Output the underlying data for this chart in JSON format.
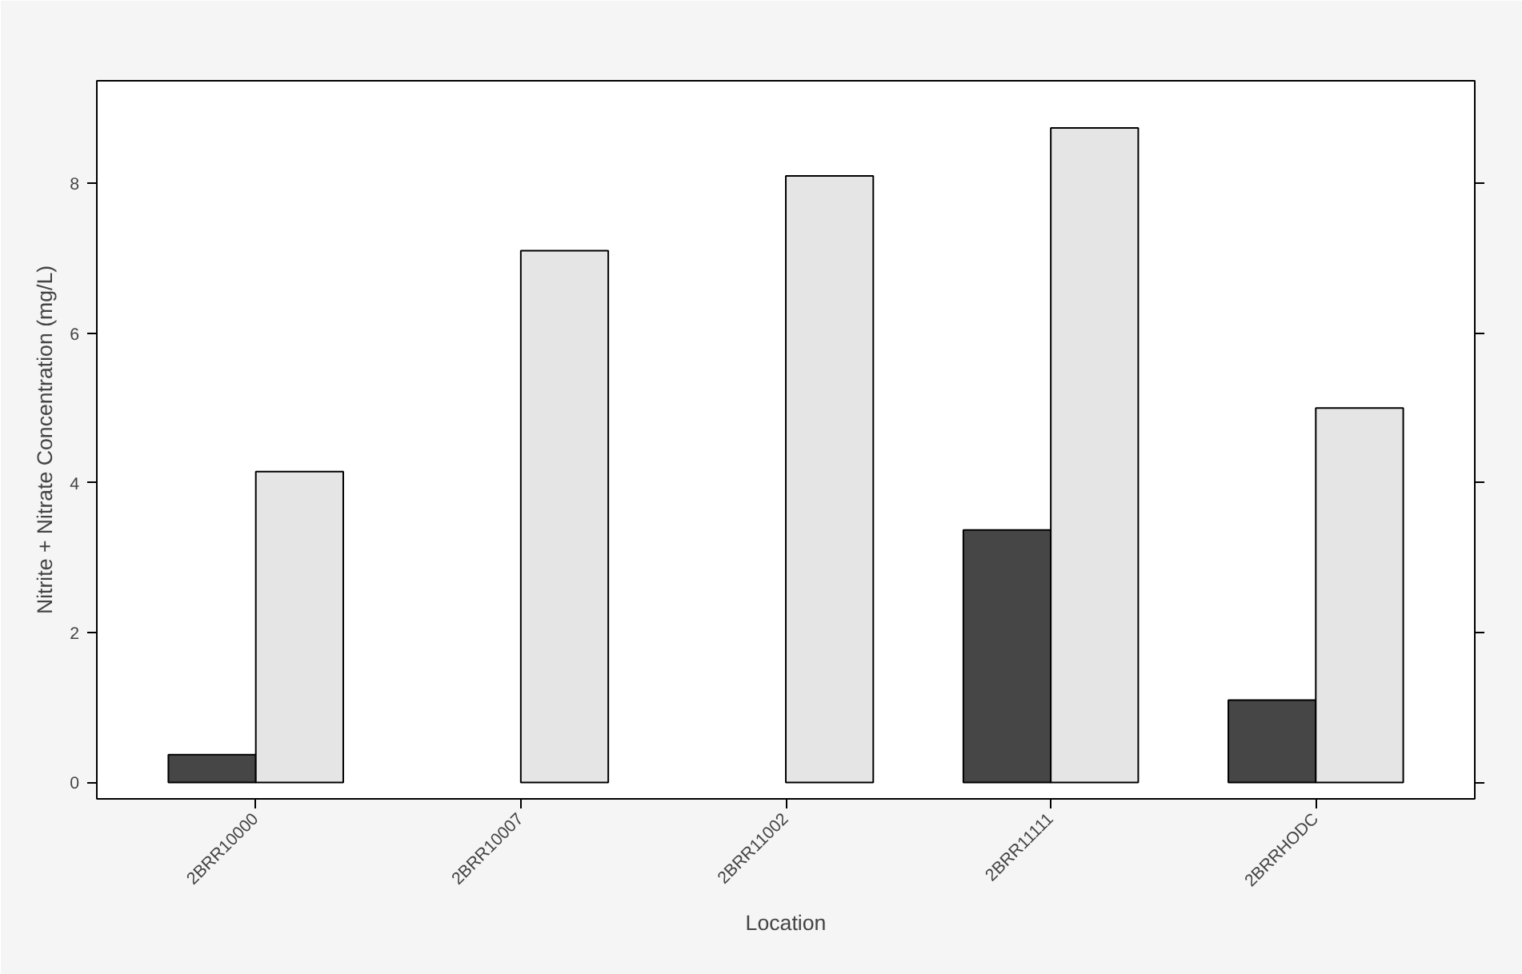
{
  "chart_data": {
    "type": "bar",
    "xlabel": "Location",
    "ylabel": "Nitrite + Nitrate Concentration (mg/L)",
    "categories": [
      "2BRR10000",
      "2BRR10007",
      "2BRR11002",
      "2BRR11111",
      "2BRRHODC"
    ],
    "series": [
      {
        "color": "#464646",
        "values": [
          0.37,
          null,
          null,
          3.37,
          1.1
        ]
      },
      {
        "color": "#e5e5e5",
        "values": [
          4.15,
          7.1,
          8.1,
          8.74,
          5.0
        ]
      }
    ],
    "ylim": [
      -0.22,
      9.37
    ],
    "yticks": [
      0,
      2,
      4,
      6,
      8
    ],
    "grid": false
  }
}
